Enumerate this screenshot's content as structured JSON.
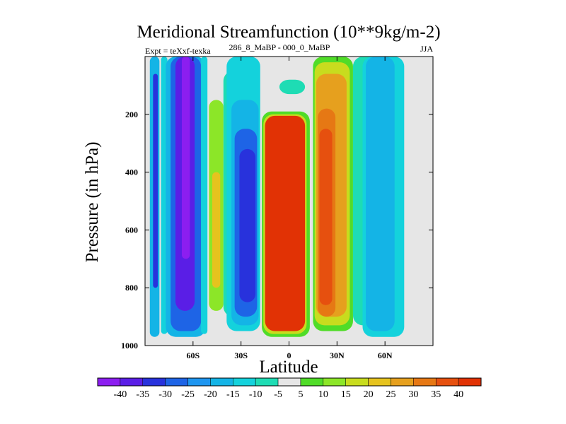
{
  "chart_data": {
    "type": "heatmap",
    "title": "Meridional Streamfunction (10**9kg/m-2)",
    "subtitle_left": "Expt = teXxf-texka",
    "subtitle_center": "286_8_MaBP - 000_0_MaBP",
    "subtitle_right": "JJA",
    "xlabel": "Latitude",
    "ylabel": "Pressure (in hPa)",
    "xlim": [
      -90,
      90
    ],
    "ylim": [
      0,
      1000
    ],
    "x_ticks": [
      {
        "value": -60,
        "label": "60S"
      },
      {
        "value": -30,
        "label": "30S"
      },
      {
        "value": 0,
        "label": "0"
      },
      {
        "value": 30,
        "label": "30N"
      },
      {
        "value": 60,
        "label": "60N"
      }
    ],
    "y_ticks": [
      {
        "value": 200,
        "label": "200"
      },
      {
        "value": 400,
        "label": "400"
      },
      {
        "value": 600,
        "label": "600"
      },
      {
        "value": 800,
        "label": "800"
      },
      {
        "value": 1000,
        "label": "1000"
      }
    ],
    "colorbar": {
      "levels": [
        -40,
        -35,
        -30,
        -25,
        -20,
        -15,
        -10,
        -5,
        5,
        10,
        15,
        20,
        25,
        30,
        35,
        40
      ],
      "colors": [
        "#8c1ef0",
        "#5a1ee6",
        "#2832dc",
        "#1e64e6",
        "#1e96f0",
        "#14b4e6",
        "#14d2dc",
        "#1edcb4",
        "#e6e6e6",
        "#50dc28",
        "#8ce628",
        "#c8dc1e",
        "#e6c31e",
        "#e6a01e",
        "#e67814",
        "#e6500f",
        "#e13205"
      ]
    },
    "bands": [
      {
        "lat_min": -87,
        "lat_max": -81,
        "p_top": 0,
        "p_bottom": 970,
        "value": -18
      },
      {
        "lat_min": -85,
        "lat_max": -82,
        "p_top": 60,
        "p_bottom": 800,
        "value": -32
      },
      {
        "lat_min": -80,
        "lat_max": -76,
        "p_top": 0,
        "p_bottom": 960,
        "value": -12
      },
      {
        "lat_min": -77,
        "lat_max": -52,
        "p_top": 0,
        "p_bottom": 970,
        "value": -18
      },
      {
        "lat_min": -74,
        "lat_max": -55,
        "p_top": 0,
        "p_bottom": 950,
        "value": -28
      },
      {
        "lat_min": -71,
        "lat_max": -59,
        "p_top": 0,
        "p_bottom": 880,
        "value": -38
      },
      {
        "lat_min": -67,
        "lat_max": -62,
        "p_top": 0,
        "p_bottom": 700,
        "value": -42
      },
      {
        "lat_min": -55,
        "lat_max": -51,
        "p_top": 0,
        "p_bottom": 960,
        "value": -12
      },
      {
        "lat_min": -50,
        "lat_max": -41,
        "p_top": 150,
        "p_bottom": 880,
        "value": 12
      },
      {
        "lat_min": -48,
        "lat_max": -43,
        "p_top": 400,
        "p_bottom": 800,
        "value": 20
      },
      {
        "lat_min": -41,
        "lat_max": -28,
        "p_top": 50,
        "p_bottom": 900,
        "value": -8
      },
      {
        "lat_min": -39,
        "lat_max": -18,
        "p_top": 0,
        "p_bottom": 950,
        "value": -12
      },
      {
        "lat_min": -36,
        "lat_max": -19,
        "p_top": 150,
        "p_bottom": 930,
        "value": -18
      },
      {
        "lat_min": -34,
        "lat_max": -20,
        "p_top": 250,
        "p_bottom": 900,
        "value": -28
      },
      {
        "lat_min": -31,
        "lat_max": -21,
        "p_top": 320,
        "p_bottom": 850,
        "value": -33
      },
      {
        "lat_min": -17,
        "lat_max": 13,
        "p_top": 190,
        "p_bottom": 970,
        "value": 8
      },
      {
        "lat_min": -16,
        "lat_max": 11,
        "p_top": 200,
        "p_bottom": 960,
        "value": 18
      },
      {
        "lat_min": -15,
        "lat_max": 10,
        "p_top": 205,
        "p_bottom": 950,
        "value": 42
      },
      {
        "lat_min": 15,
        "lat_max": 40,
        "p_top": 0,
        "p_bottom": 950,
        "value": 8
      },
      {
        "lat_min": 16,
        "lat_max": 38,
        "p_top": 20,
        "p_bottom": 930,
        "value": 18
      },
      {
        "lat_min": 17,
        "lat_max": 36,
        "p_top": 60,
        "p_bottom": 900,
        "value": 25
      },
      {
        "lat_min": 18,
        "lat_max": 29,
        "p_top": 180,
        "p_bottom": 900,
        "value": 33
      },
      {
        "lat_min": 19,
        "lat_max": 27,
        "p_top": 250,
        "p_bottom": 860,
        "value": 38
      },
      {
        "lat_min": 40,
        "lat_max": 55,
        "p_top": 0,
        "p_bottom": 930,
        "value": -8
      },
      {
        "lat_min": 46,
        "lat_max": 72,
        "p_top": 0,
        "p_bottom": 970,
        "value": -12
      },
      {
        "lat_min": 48,
        "lat_max": 66,
        "p_top": 0,
        "p_bottom": 950,
        "value": -18
      },
      {
        "lat_min": -6,
        "lat_max": 10,
        "p_top": 80,
        "p_bottom": 130,
        "value": -8
      }
    ]
  }
}
